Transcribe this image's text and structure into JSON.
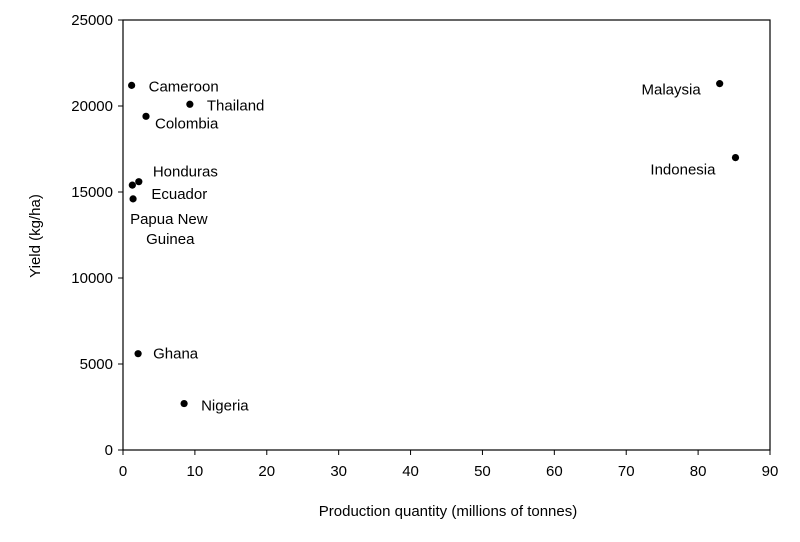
{
  "chart_data": {
    "type": "scatter",
    "title": "",
    "xlabel": "Production quantity (millions of tonnes)",
    "ylabel": "Yield (kg/ha)",
    "xlim": [
      0,
      90
    ],
    "ylim": [
      0,
      25000
    ],
    "x_ticks": [
      0,
      10,
      20,
      30,
      40,
      50,
      60,
      70,
      80,
      90
    ],
    "y_ticks": [
      0,
      5000,
      10000,
      15000,
      20000,
      25000
    ],
    "grid": false,
    "legend": "none",
    "marker_color": "#000000",
    "points": [
      {
        "label": "Cameroon",
        "x": 1.2,
        "y": 21200
      },
      {
        "label": "Thailand",
        "x": 9.3,
        "y": 20100
      },
      {
        "label": "Colombia",
        "x": 3.2,
        "y": 19400
      },
      {
        "label": "Honduras",
        "x": 2.2,
        "y": 15600
      },
      {
        "label": "Ecuador",
        "x": 1.3,
        "y": 15400
      },
      {
        "label": "Papua New Guinea",
        "label_lines": [
          "Papua New",
          "Guinea"
        ],
        "x": 1.4,
        "y": 14600
      },
      {
        "label": "Ghana",
        "x": 2.1,
        "y": 5600
      },
      {
        "label": "Nigeria",
        "x": 8.5,
        "y": 2700
      },
      {
        "label": "Malaysia",
        "x": 83.0,
        "y": 21300
      },
      {
        "label": "Indonesia",
        "x": 85.2,
        "y": 17000
      }
    ]
  }
}
